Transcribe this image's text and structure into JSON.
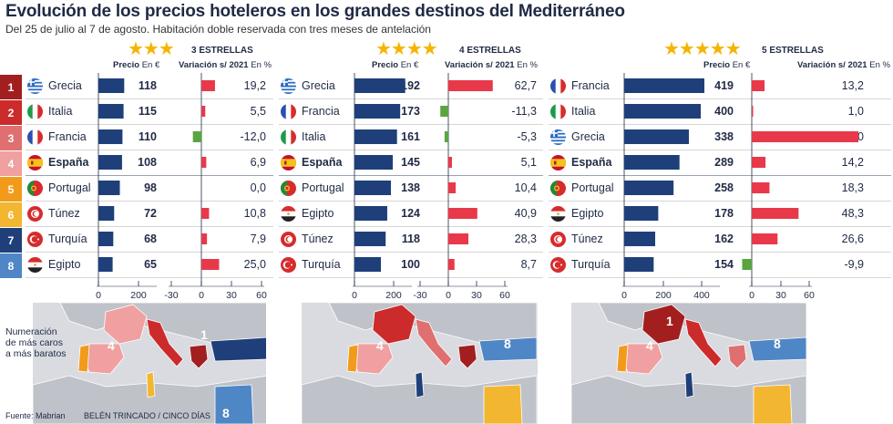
{
  "title": "Evolución de los precios hoteleros en los grandes destinos del Mediterráneo",
  "subtitle": "Del 25 de julio al 7 de agosto. Habitación doble reservada con tres meses de antelación",
  "ranks": [
    "1",
    "2",
    "3",
    "4",
    "5",
    "6",
    "7",
    "8"
  ],
  "rank_colors": [
    "#a31f1f",
    "#cc2b2b",
    "#e07070",
    "#f0a0a0",
    "#f29b1b",
    "#f2b630",
    "#1f3f7a",
    "#4f86c6"
  ],
  "price_head": "Precio",
  "price_unit": "En €",
  "var_head": "Variación s/ 2021",
  "var_unit": "En %",
  "note": [
    "Numeración",
    "de más caros",
    "a más baratos"
  ],
  "source": "Fuente: Mabrian",
  "credit": "BELÉN TRINCADO / CINCO DÍAS",
  "colors": {
    "bar": "#1f3f7a",
    "pos": "#e8394a",
    "neg": "#5aa541",
    "star": "#f5b400"
  },
  "chart_data": [
    {
      "type": "bar",
      "title": "3 ESTRELLAS",
      "stars": "★★★",
      "categories": [
        "Grecia",
        "Italia",
        "Francia",
        "España",
        "Portugal",
        "Túnez",
        "Turquía",
        "Egipto"
      ],
      "bold": [
        "España"
      ],
      "flags": [
        "gr",
        "it",
        "fr",
        "es",
        "pt",
        "tn",
        "tr",
        "eg"
      ],
      "price": [
        118,
        115,
        110,
        108,
        98,
        72,
        68,
        65
      ],
      "variation": [
        "19,2",
        "5,5",
        "-12,0",
        "6,9",
        "0,0",
        "10,8",
        "7,9",
        "25,0"
      ],
      "variation_values": [
        19.2,
        5.5,
        -12.0,
        6.9,
        0.0,
        10.8,
        7.9,
        25.0
      ],
      "price_ticks": [
        "0",
        "200"
      ],
      "price_lim": [
        0,
        280
      ],
      "var_ticks": [
        "-30",
        "0",
        "30",
        "60"
      ],
      "var_lim": [
        -30,
        60
      ],
      "map_labels": [
        "4",
        "1"
      ]
    },
    {
      "type": "bar",
      "title": "4 ESTRELLAS",
      "stars": "★★★★",
      "categories": [
        "Grecia",
        "Francia",
        "Italia",
        "España",
        "Portugal",
        "Egipto",
        "Túnez",
        "Turquía"
      ],
      "bold": [
        "España"
      ],
      "flags": [
        "gr",
        "fr",
        "it",
        "es",
        "pt",
        "eg",
        "tn",
        "tr"
      ],
      "price": [
        192,
        173,
        161,
        145,
        138,
        124,
        118,
        100
      ],
      "variation": [
        "62,7",
        "-11,3",
        "-5,3",
        "5,1",
        "10,4",
        "40,9",
        "28,3",
        "8,7"
      ],
      "variation_values": [
        62.7,
        -11.3,
        -5.3,
        5.1,
        10.4,
        40.9,
        28.3,
        8.7
      ],
      "price_ticks": [
        "0",
        "200"
      ],
      "price_lim": [
        0,
        280
      ],
      "var_ticks": [
        "-30",
        "0",
        "30",
        "60"
      ],
      "var_lim": [
        -30,
        60
      ],
      "map_labels": [
        "4",
        "8"
      ]
    },
    {
      "type": "bar",
      "title": "5 ESTRELLAS",
      "stars": "★★★★★",
      "categories": [
        "Francia",
        "Italia",
        "Grecia",
        "España",
        "Portugal",
        "Egipto",
        "Túnez",
        "Turquía"
      ],
      "bold": [
        "España"
      ],
      "flags": [
        "fr",
        "it",
        "gr",
        "es",
        "pt",
        "eg",
        "tn",
        "tr"
      ],
      "price": [
        419,
        400,
        338,
        289,
        258,
        178,
        162,
        154
      ],
      "variation": [
        "13,2",
        "1,0",
        "110,0",
        "14,2",
        "18,3",
        "48,3",
        "26,6",
        "-9,9"
      ],
      "variation_values": [
        13.2,
        1.0,
        110.0,
        14.2,
        18.3,
        48.3,
        26.6,
        -9.9
      ],
      "price_ticks": [
        "0",
        "200",
        "400"
      ],
      "price_lim": [
        0,
        460
      ],
      "var_ticks": [
        "0",
        "30",
        "60"
      ],
      "var_lim": [
        0,
        115
      ],
      "map_labels": [
        "1",
        "4",
        "8"
      ]
    }
  ],
  "map_bottom_label": "8"
}
